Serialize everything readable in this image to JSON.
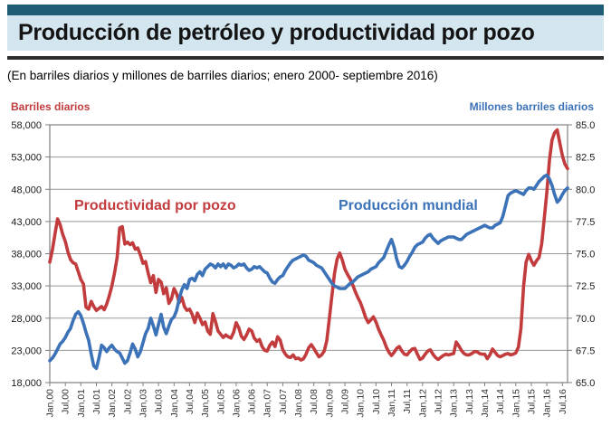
{
  "header": {
    "title": "Producción de petróleo y productividad por pozo",
    "subtitle": "(En barriles diarios y millones de barriles diarios; enero 2000- septiembre 2016)"
  },
  "colors": {
    "accent_bar": "#1f5d75",
    "title_band": "#d3e5ef",
    "divider": "#2d2d2d",
    "red_series": "#c23b3d",
    "blue_series": "#3c72b8",
    "gridline": "#999999",
    "axis_frame": "#808080"
  },
  "chart_data": {
    "type": "line",
    "title": "Producción de petróleo y productividad por pozo",
    "x_start": "Jan 2000",
    "x_end": "Sep 2016",
    "grid": "horizontal",
    "x_tick_labels": [
      "Jan,00",
      "Jul,00",
      "Jan,01",
      "Jul,01",
      "Jan,02",
      "Jul,02",
      "Jan,03",
      "Jul,03",
      "Jan,04",
      "Jul,04",
      "Jan,05",
      "Jul,05",
      "Jan,06",
      "Jul,06",
      "Jan,07",
      "Jul,07",
      "Jan,08",
      "Jul,08",
      "Jan,09",
      "Jul,09",
      "Jan,10",
      "Jul,10",
      "Jan,11",
      "Jul,11",
      "Jan,12",
      "Jul,12",
      "Jan,13",
      "Jul,13",
      "Jan,14",
      "Jul,14",
      "Jan,15",
      "Jul,15",
      "Jan,16",
      "Jul,16"
    ],
    "left_axis": {
      "title": "Barriles diarios",
      "min": 18000,
      "max": 58000,
      "tick_labels": [
        "58,000",
        "53,000",
        "48,000",
        "43,000",
        "38,000",
        "33,000",
        "28,000",
        "23,000",
        "18,000"
      ]
    },
    "right_axis": {
      "title": "Millones barriles diarios",
      "min": 65.0,
      "max": 85.0,
      "tick_labels": [
        "85.0",
        "82.5",
        "80.0",
        "77.5",
        "75.0",
        "72.5",
        "70.0",
        "67.5",
        "65.0"
      ]
    },
    "series": [
      {
        "id": "productividad-por-pozo",
        "label": "Productividad por pozo",
        "axis": "left",
        "color": "#c23b3d",
        "values": [
          36700,
          38600,
          41000,
          43400,
          42500,
          41000,
          39900,
          38300,
          37100,
          36600,
          36400,
          35200,
          34000,
          33300,
          29700,
          29400,
          30600,
          29800,
          29200,
          29500,
          29800,
          29300,
          30200,
          31500,
          33000,
          35000,
          37400,
          42000,
          42200,
          39500,
          39800,
          39400,
          39700,
          38700,
          38900,
          37800,
          36500,
          36800,
          35000,
          33500,
          34600,
          32000,
          34000,
          33600,
          31800,
          32700,
          30300,
          31000,
          32600,
          31800,
          30400,
          31200,
          29800,
          29200,
          29400,
          28600,
          27300,
          28800,
          28000,
          27000,
          27400,
          26000,
          25500,
          28700,
          27500,
          26000,
          25500,
          25000,
          25400,
          25100,
          24900,
          25800,
          27300,
          26500,
          25200,
          24700,
          25400,
          26300,
          26000,
          24900,
          24400,
          24700,
          23600,
          23000,
          22900,
          23800,
          24300,
          23600,
          25100,
          24600,
          23100,
          22400,
          22000,
          21900,
          22300,
          21700,
          21800,
          21500,
          21700,
          22400,
          23400,
          23900,
          23300,
          22600,
          22000,
          22300,
          22900,
          24500,
          28000,
          31500,
          35000,
          37200,
          38100,
          37000,
          35600,
          34800,
          34100,
          33200,
          32100,
          31200,
          30400,
          29300,
          28100,
          27300,
          27700,
          28200,
          27400,
          26300,
          25400,
          24600,
          23500,
          22700,
          22200,
          22700,
          23300,
          23600,
          22900,
          22400,
          22300,
          22800,
          23200,
          23300,
          22400,
          21600,
          21800,
          22400,
          22900,
          23100,
          22400,
          21900,
          21600,
          21900,
          22200,
          22400,
          22300,
          22400,
          22500,
          24300,
          23700,
          23000,
          22500,
          22300,
          22300,
          22500,
          22800,
          22800,
          22500,
          22400,
          22400,
          21700,
          22300,
          23200,
          22700,
          22200,
          22000,
          22200,
          22400,
          22500,
          22300,
          22400,
          22600,
          23500,
          26400,
          32900,
          36700,
          37900,
          36900,
          36200,
          36900,
          37400,
          39500,
          43500,
          47500,
          52500,
          55600,
          56800,
          57200,
          55200,
          53200,
          51900,
          51200
        ]
      },
      {
        "id": "produccion-mundial",
        "label": "Producción mundial",
        "axis": "right",
        "color": "#3c72b8",
        "values": [
          66.7,
          66.9,
          67.2,
          67.6,
          68.0,
          68.2,
          68.5,
          68.9,
          69.2,
          69.8,
          70.3,
          70.5,
          70.2,
          69.6,
          68.9,
          68.3,
          67.2,
          66.3,
          66.1,
          66.9,
          67.9,
          67.7,
          67.4,
          67.7,
          67.9,
          67.6,
          67.4,
          67.3,
          66.9,
          66.5,
          66.7,
          67.3,
          68.0,
          67.6,
          67.0,
          67.4,
          68.1,
          68.8,
          69.2,
          70.0,
          69.4,
          68.7,
          69.5,
          70.3,
          69.3,
          68.8,
          69.4,
          69.9,
          70.1,
          70.6,
          71.5,
          72.2,
          72.6,
          72.3,
          73.0,
          73.1,
          72.9,
          73.4,
          73.6,
          73.3,
          73.8,
          74.0,
          74.2,
          74.1,
          73.9,
          74.2,
          74.0,
          74.2,
          73.9,
          74.2,
          74.1,
          73.9,
          74.0,
          74.2,
          74.1,
          74.2,
          73.9,
          73.7,
          73.8,
          74.0,
          73.9,
          74.0,
          73.8,
          73.6,
          73.5,
          73.1,
          72.8,
          72.7,
          73.0,
          73.2,
          73.3,
          73.7,
          74.0,
          74.3,
          74.5,
          74.6,
          74.7,
          74.8,
          74.9,
          74.8,
          74.5,
          74.4,
          74.3,
          74.1,
          74.0,
          73.9,
          73.6,
          73.3,
          73.0,
          72.7,
          72.5,
          72.4,
          72.3,
          72.3,
          72.3,
          72.5,
          72.7,
          72.8,
          73.0,
          73.2,
          73.3,
          73.4,
          73.5,
          73.6,
          73.8,
          73.9,
          74.0,
          74.3,
          74.5,
          74.7,
          75.2,
          75.7,
          76.1,
          75.5,
          74.6,
          74.0,
          73.9,
          74.1,
          74.4,
          74.8,
          75.1,
          75.5,
          75.7,
          75.8,
          75.9,
          76.2,
          76.4,
          76.5,
          76.2,
          76.0,
          75.8,
          76.0,
          76.1,
          76.2,
          76.3,
          76.3,
          76.3,
          76.2,
          76.1,
          76.1,
          76.3,
          76.5,
          76.6,
          76.7,
          76.8,
          76.9,
          77.0,
          77.1,
          77.2,
          77.1,
          77.0,
          77.0,
          77.2,
          77.3,
          77.4,
          77.9,
          78.7,
          79.5,
          79.7,
          79.8,
          79.9,
          79.8,
          79.7,
          79.6,
          79.9,
          80.1,
          80.1,
          80.0,
          80.3,
          80.6,
          80.8,
          81.0,
          81.1,
          80.8,
          80.3,
          79.6,
          79.0,
          79.2,
          79.6,
          79.9,
          80.1
        ]
      }
    ]
  }
}
